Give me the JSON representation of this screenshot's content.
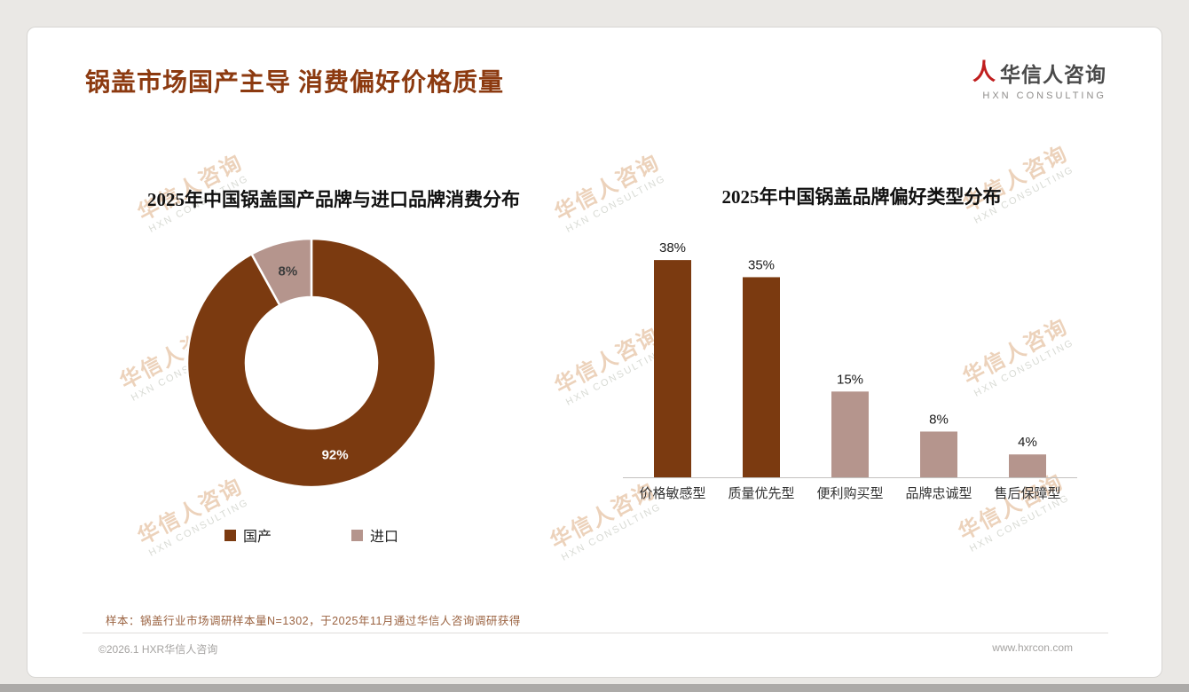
{
  "header": {
    "title": "锅盖市场国产主导 消费偏好价格质量",
    "logo": {
      "name": "华信人咨询",
      "sub": "HXN CONSULTING",
      "mark_color": "#C01E1E"
    }
  },
  "watermark": {
    "line1": "华信人咨询",
    "line2": "HXN CONSULTING"
  },
  "colors": {
    "title_brown": "#8C3A10",
    "primary_brown": "#7B3A10",
    "secondary_mauve": "#B5958D"
  },
  "chart_data": [
    {
      "type": "pie",
      "subtype": "donut",
      "title": "2025年中国锅盖国产品牌与进口品牌消费分布",
      "labels": [
        "国产",
        "进口"
      ],
      "values": [
        92,
        8
      ],
      "data_labels": [
        "92%",
        "8%"
      ],
      "slice_colors": [
        "#7B3A10",
        "#B5958D"
      ],
      "label_colors": [
        "#FFFFFF",
        "#3D3D3D"
      ],
      "legend_position": "bottom",
      "start_angle": "top",
      "direction": "clockwise"
    },
    {
      "type": "bar",
      "title": "2025年中国锅盖品牌偏好类型分布",
      "categories": [
        "价格敏感型",
        "质量优先型",
        "便利购买型",
        "品牌忠诚型",
        "售后保障型"
      ],
      "values": [
        38,
        35,
        15,
        8,
        4
      ],
      "data_labels": [
        "38%",
        "35%",
        "15%",
        "8%",
        "4%"
      ],
      "bar_colors": [
        "#7B3A10",
        "#7B3A10",
        "#B5958D",
        "#B5958D",
        "#B5958D"
      ],
      "ylim": [
        0,
        45
      ],
      "grid": false,
      "legend": "none"
    }
  ],
  "footer": {
    "note": "样本：锅盖行业市场调研样本量N=1302，于2025年11月通过华信人咨询调研获得",
    "copyright": "©2026.1 HXR华信人咨询",
    "website": "www.hxrcon.com"
  }
}
